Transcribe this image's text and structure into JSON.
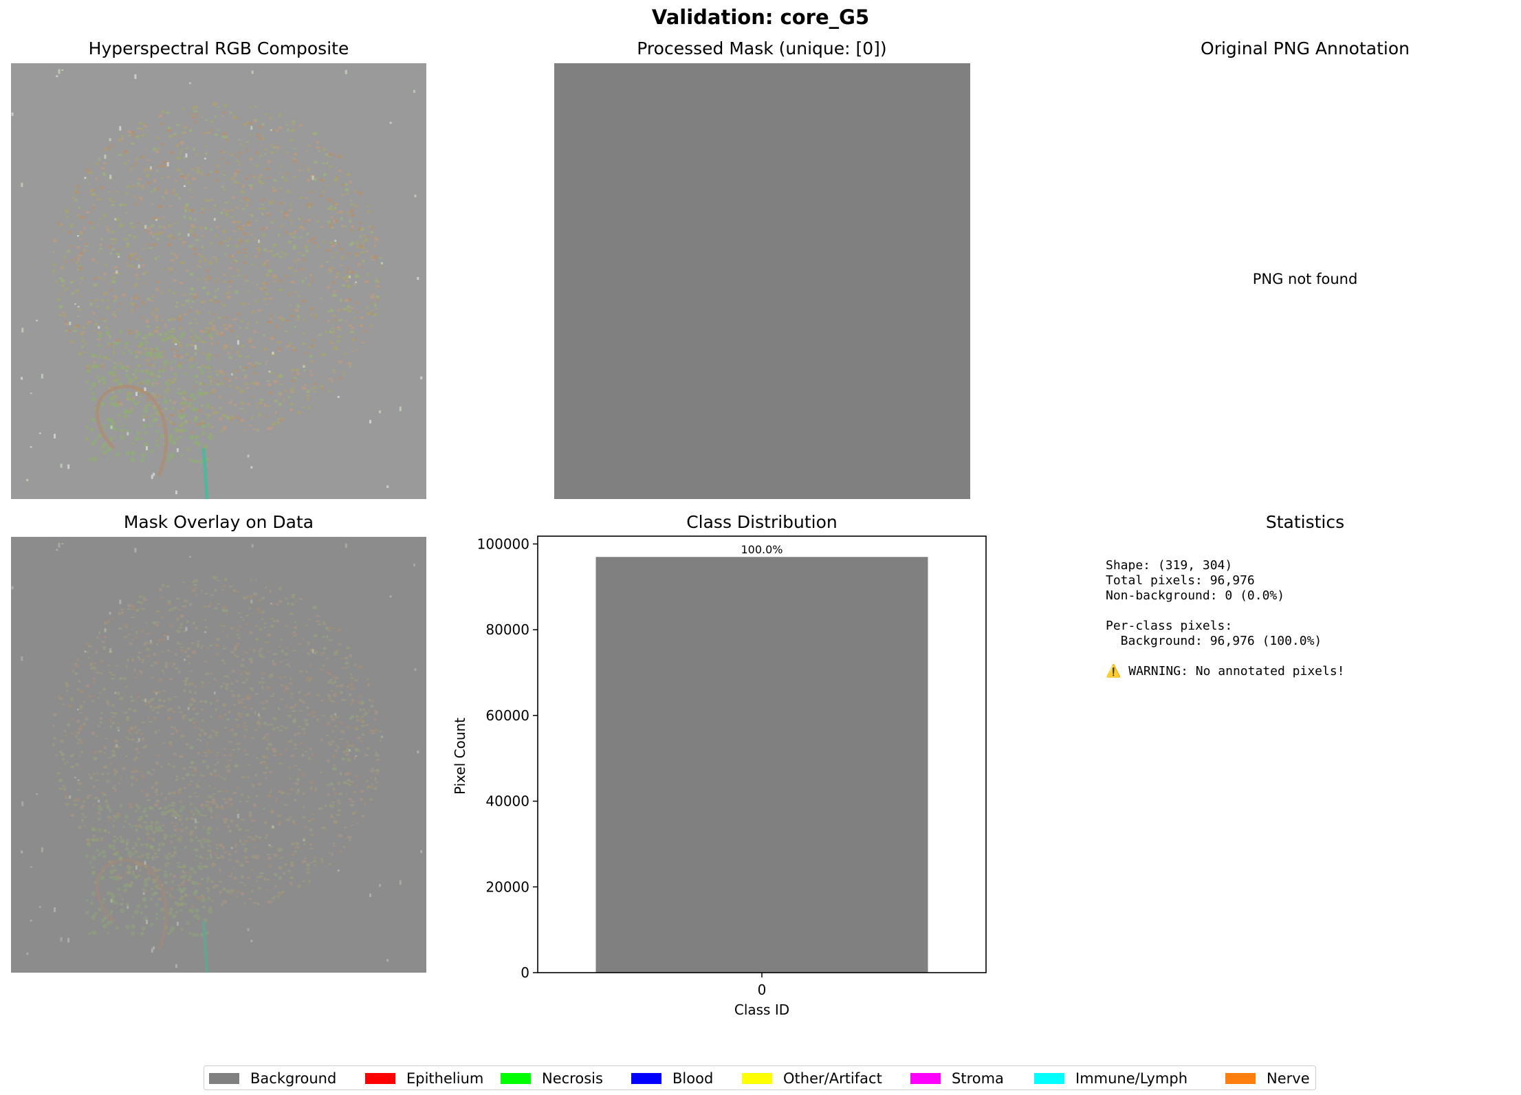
{
  "figure": {
    "suptitle": "Validation: core_G5"
  },
  "panels": {
    "rgb_title": "Hyperspectral RGB Composite",
    "mask_title": "Processed Mask (unique: [0])",
    "png_title": "Original PNG Annotation",
    "png_missing_text": "PNG not found",
    "overlay_title": "Mask Overlay on Data",
    "dist_title": "Class Distribution",
    "stats_title": "Statistics"
  },
  "statistics": {
    "lines": [
      "Shape: (319, 304)",
      "Total pixels: 96,976",
      "Non-background: 0 (0.0%)",
      "",
      "Per-class pixels:",
      "  Background: 96,976 (100.0%)",
      "",
      "⚠️ WARNING: No annotated pixels!"
    ]
  },
  "colors": {
    "mask_gray": "#808080",
    "rgb_bg": "#9a9a9a",
    "overlay_bg": "#8c8c8c"
  },
  "chart_data": {
    "type": "bar",
    "title": "Class Distribution",
    "categories": [
      "0"
    ],
    "values": [
      96976
    ],
    "data_labels": [
      "100.0%"
    ],
    "xlabel": "Class ID",
    "ylabel": "Pixel Count",
    "ylim": [
      0,
      101824
    ],
    "yticks": [
      0,
      20000,
      40000,
      60000,
      80000,
      100000
    ],
    "bar_color": "#808080",
    "grid": false
  },
  "legend": {
    "placement": "bottom-center",
    "items": [
      {
        "label": "Background",
        "color": "#808080"
      },
      {
        "label": "Epithelium",
        "color": "#ff0000"
      },
      {
        "label": "Necrosis",
        "color": "#00ff00"
      },
      {
        "label": "Blood",
        "color": "#0000ff"
      },
      {
        "label": "Other/Artifact",
        "color": "#ffff00"
      },
      {
        "label": "Stroma",
        "color": "#ff00ff"
      },
      {
        "label": "Immune/Lymph",
        "color": "#00ffff"
      },
      {
        "label": "Nerve",
        "color": "#ff7f0e"
      }
    ]
  }
}
